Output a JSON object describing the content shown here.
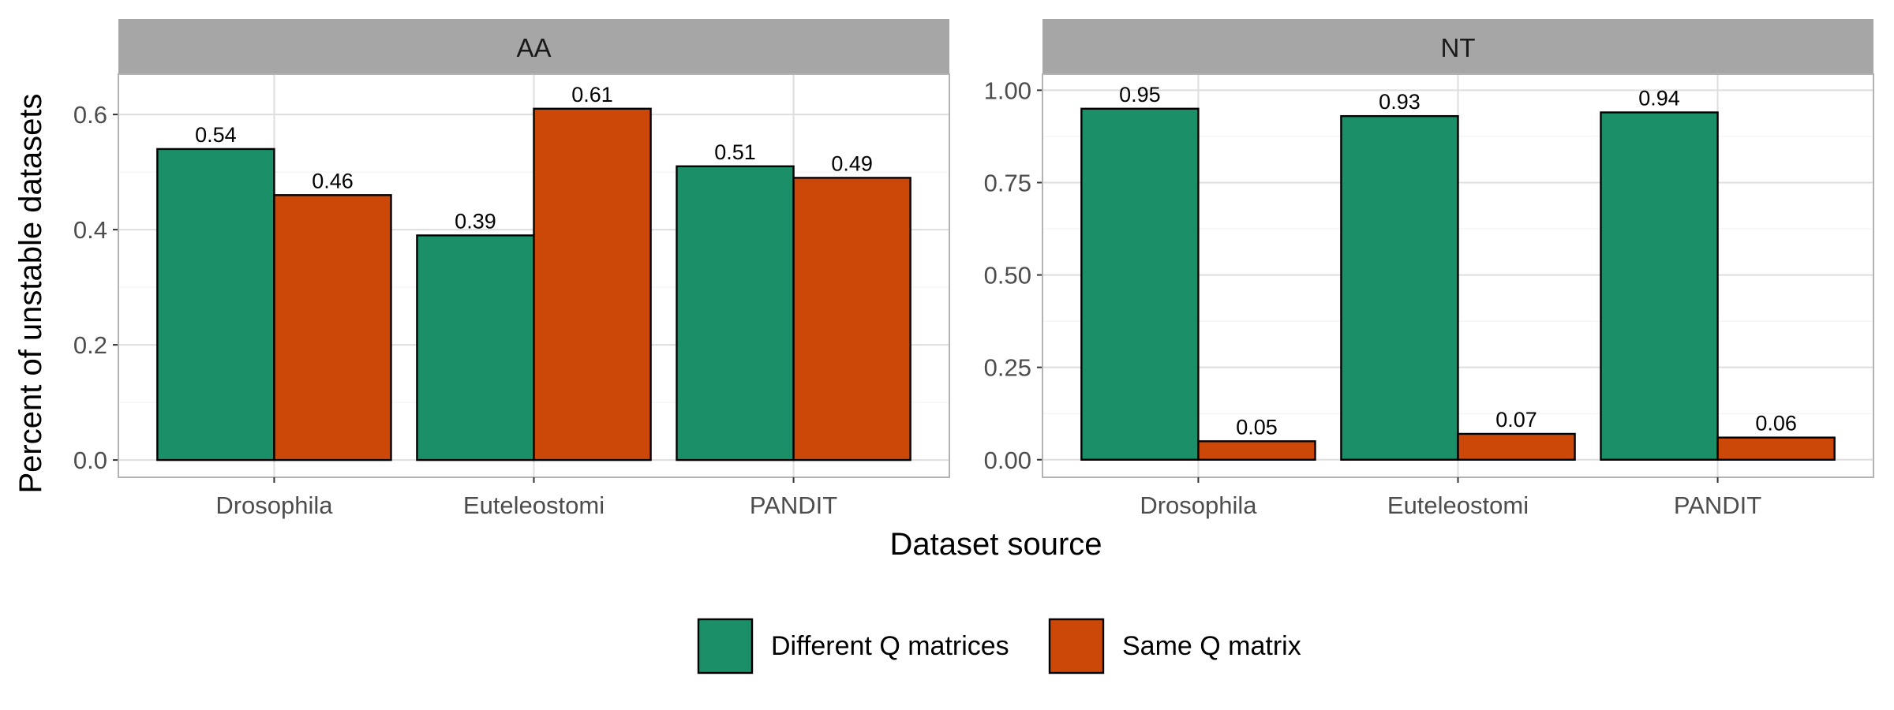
{
  "chart_data": {
    "type": "bar",
    "xlabel": "Dataset source",
    "ylabel": "Percent of unstable datasets",
    "grid": true,
    "legend_placement": "bottom",
    "series": [
      {
        "name": "Different Q matrices",
        "color": "#1B9068"
      },
      {
        "name": "Same Q matrix",
        "color": "#CC4808"
      }
    ],
    "panels": [
      {
        "label": "AA",
        "categories": [
          "Drosophila",
          "Euteleostomi",
          "PANDIT"
        ],
        "ylim": [
          -0.03,
          0.67
        ],
        "yticks": [
          0.0,
          0.2,
          0.4,
          0.6
        ],
        "ytick_labels": [
          "0.0",
          "0.2",
          "0.4",
          "0.6"
        ],
        "values": [
          [
            0.54,
            0.39,
            0.51
          ],
          [
            0.46,
            0.61,
            0.49
          ]
        ],
        "value_labels": [
          [
            "0.54",
            "0.39",
            "0.51"
          ],
          [
            "0.46",
            "0.61",
            "0.49"
          ]
        ]
      },
      {
        "label": "NT",
        "categories": [
          "Drosophila",
          "Euteleostomi",
          "PANDIT"
        ],
        "ylim": [
          -0.0475,
          1.0435
        ],
        "yticks": [
          0.0,
          0.25,
          0.5,
          0.75,
          1.0
        ],
        "ytick_labels": [
          "0.00",
          "0.25",
          "0.50",
          "0.75",
          "1.00"
        ],
        "values": [
          [
            0.95,
            0.93,
            0.94
          ],
          [
            0.05,
            0.07,
            0.06
          ]
        ],
        "value_labels": [
          [
            "0.95",
            "0.93",
            "0.94"
          ],
          [
            "0.05",
            "0.07",
            "0.06"
          ]
        ]
      }
    ]
  }
}
